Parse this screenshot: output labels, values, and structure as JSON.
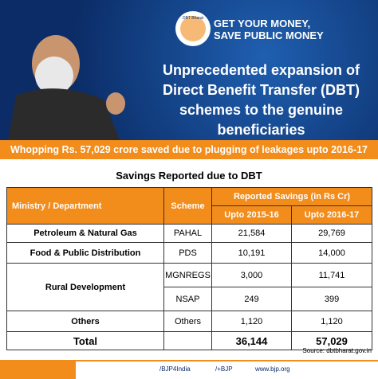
{
  "logo": {
    "badge": "DBT Bharat",
    "slogan": [
      "GET YOUR MONEY,",
      "SAVE PUBLIC MONEY"
    ]
  },
  "headline": [
    "Unprecedented expansion of",
    "Direct Benefit Transfer (DBT)",
    "schemes to the genuine beneficiaries"
  ],
  "banner": "Whopping Rs. 57,029 crore saved due to plugging of leakages upto 2016-17",
  "table": {
    "title": "Savings Reported due to DBT",
    "header": {
      "ministry": "Ministry / Department",
      "scheme": "Scheme",
      "savings": "Reported Savings (in Rs Cr)",
      "periods": [
        "Upto 2015-16",
        "Upto 2016-17"
      ]
    },
    "rows": [
      [
        "Petroleum & Natural Gas",
        "PAHAL",
        "21,584",
        "29,769"
      ],
      [
        "Food & Public Distribution",
        "PDS",
        "10,191",
        "14,000"
      ],
      [
        "Rural Development",
        "MGNREGS",
        "3,000",
        "11,741"
      ],
      [
        null,
        "NSAP",
        "249",
        "399"
      ],
      [
        "Others",
        "Others",
        "1,120",
        "1,120"
      ]
    ],
    "total": {
      "label": "Total",
      "values": [
        "36,144",
        "57,029"
      ]
    }
  },
  "source": "Source: dbtbharat.gov.in",
  "footer": {
    "handle": "/BJP4India",
    "gplus": "/+BJP",
    "site": "www.bjp.org"
  }
}
